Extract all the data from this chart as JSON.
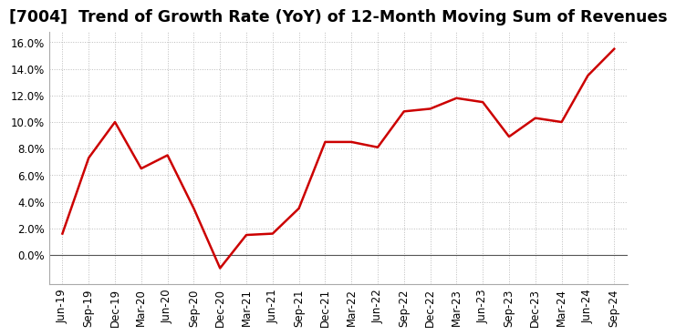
{
  "title": "[7004]  Trend of Growth Rate (YoY) of 12-Month Moving Sum of Revenues",
  "x_labels": [
    "Jun-19",
    "Sep-19",
    "Dec-19",
    "Mar-20",
    "Jun-20",
    "Sep-20",
    "Dec-20",
    "Mar-21",
    "Jun-21",
    "Sep-21",
    "Dec-21",
    "Mar-22",
    "Jun-22",
    "Sep-22",
    "Dec-22",
    "Mar-23",
    "Jun-23",
    "Sep-23",
    "Dec-23",
    "Mar-24",
    "Jun-24",
    "Sep-24"
  ],
  "y_values": [
    0.016,
    0.073,
    0.1,
    0.065,
    0.075,
    0.035,
    -0.01,
    0.015,
    0.016,
    0.035,
    0.085,
    0.085,
    0.081,
    0.108,
    0.11,
    0.118,
    0.115,
    0.089,
    0.103,
    0.1,
    0.135,
    0.155
  ],
  "line_color": "#cc0000",
  "line_width": 1.8,
  "ylim_min": -0.022,
  "ylim_max": 0.168,
  "yticks": [
    0.0,
    0.02,
    0.04,
    0.06,
    0.08,
    0.1,
    0.12,
    0.14,
    0.16
  ],
  "background_color": "#ffffff",
  "grid_color": "#bbbbbb",
  "title_fontsize": 12.5,
  "axis_label_fontsize": 8.5,
  "zero_line_color": "#555555",
  "spine_color": "#aaaaaa"
}
